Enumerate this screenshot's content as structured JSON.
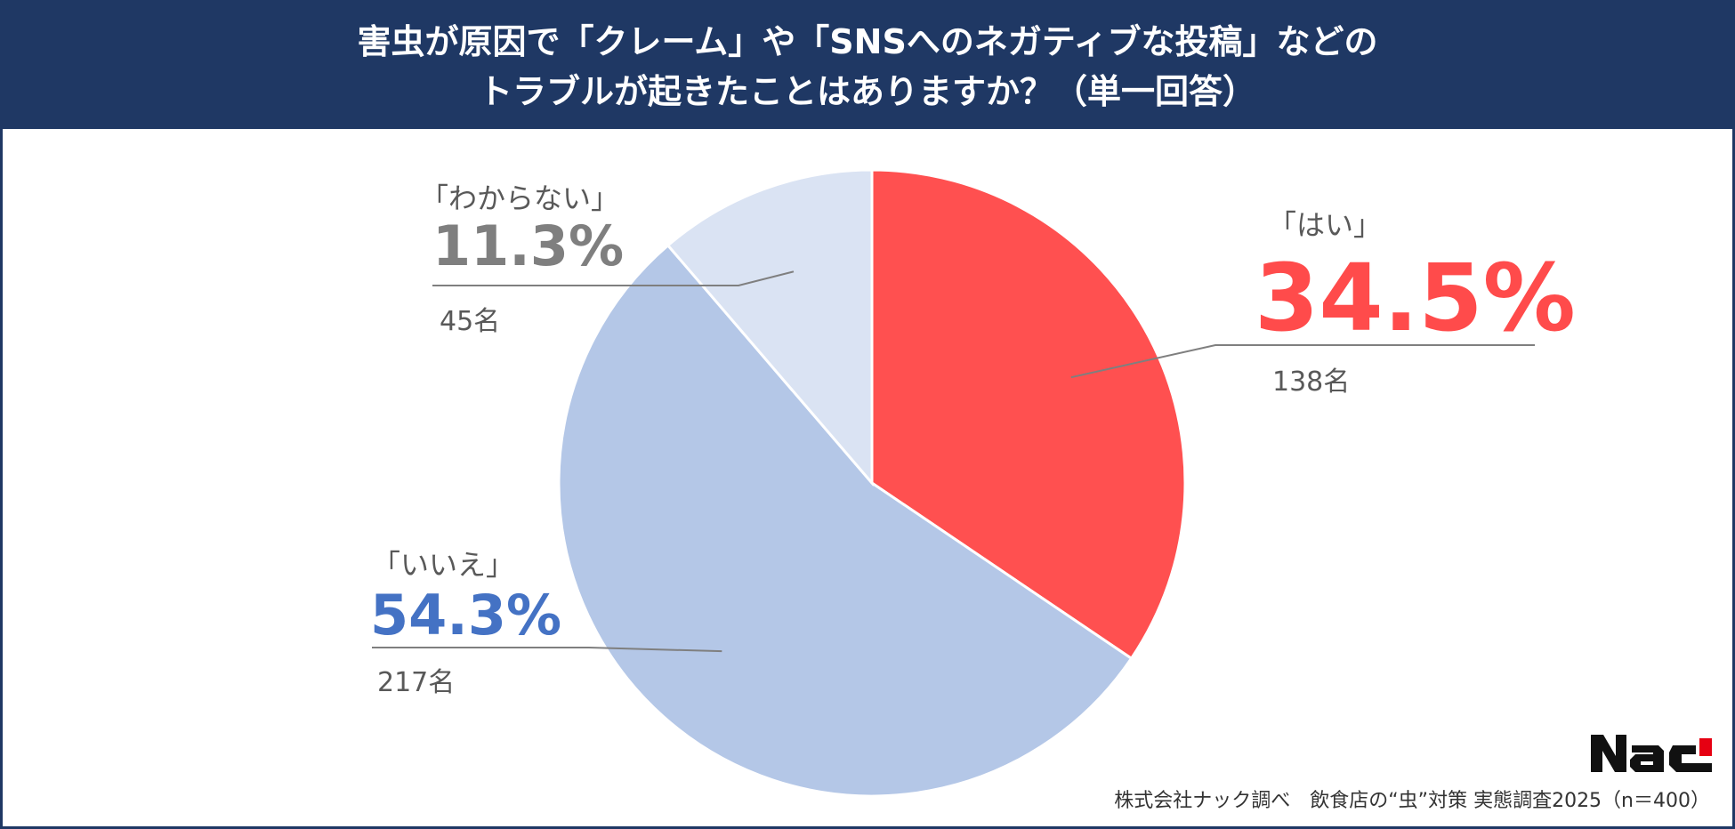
{
  "header": {
    "line1": "害虫が原因で「クレーム」や「SNSへのネガティブな投稿」などの",
    "line2": "トラブルが起きたことはありますか？（単一回答）"
  },
  "chart_data": {
    "type": "pie",
    "slices": [
      {
        "label": "「はい」",
        "percent_text": "34.5%",
        "value": 34.5,
        "count_text": "138名",
        "count": 138,
        "color": "#ff5050",
        "label_color": "#ff4b4b"
      },
      {
        "label": "「いいえ」",
        "percent_text": "54.3%",
        "value": 54.3,
        "count_text": "217名",
        "count": 217,
        "color": "#b4c7e7",
        "label_color": "#4472c4"
      },
      {
        "label": "「わからない」",
        "percent_text": "11.3%",
        "value": 11.3,
        "count_text": "45名",
        "count": 45,
        "color": "#dae3f3",
        "label_color": "#7f7f7f"
      }
    ]
  },
  "footer": {
    "source": "株式会社ナック調べ　飲食店の“虫”対策 実態調査2025（n＝400）"
  },
  "logo": {
    "text": "NAC"
  },
  "colors": {
    "header_bg": "#1f3864",
    "border": "#1f3864",
    "leader": "#7f7f7f"
  }
}
